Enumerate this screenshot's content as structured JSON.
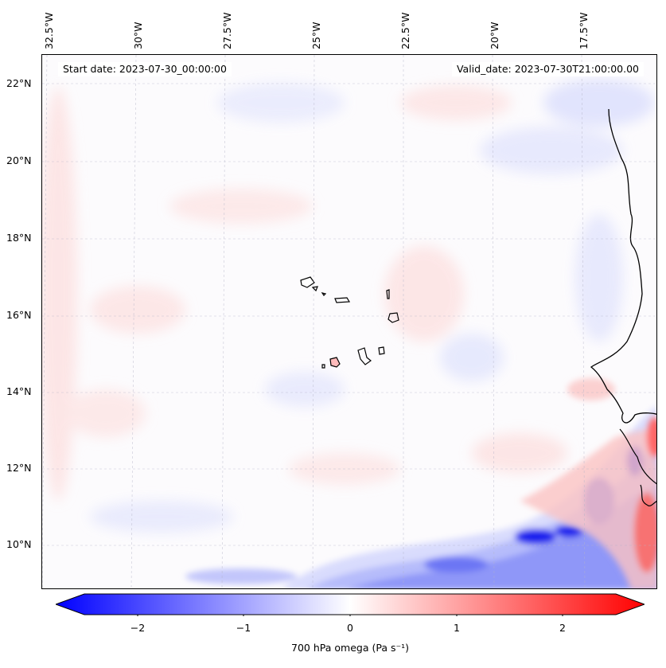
{
  "map": {
    "start_label": "Start date: 2023-07-30_00:00:00",
    "valid_label": "Valid_date: 2023-07-30T21:00:00.00",
    "lon_labels": [
      "32.5°W",
      "30°W",
      "27.5°W",
      "25°W",
      "22.5°W",
      "20°W",
      "17.5°W"
    ],
    "lat_labels": [
      "22°N",
      "20°N",
      "18°N",
      "16°N",
      "14°N",
      "12°N",
      "10°N"
    ]
  },
  "colorbar": {
    "ticks": [
      "−2",
      "−1",
      "0",
      "1",
      "2"
    ],
    "tick_values": [
      -2,
      -1,
      0,
      1,
      2
    ],
    "range": [
      -2.5,
      2.5
    ],
    "label": "700 hPa omega (Pa s⁻¹)",
    "colors": {
      "negative": "#0000ff",
      "zero": "#ffffff",
      "positive": "#ff0000"
    }
  }
}
